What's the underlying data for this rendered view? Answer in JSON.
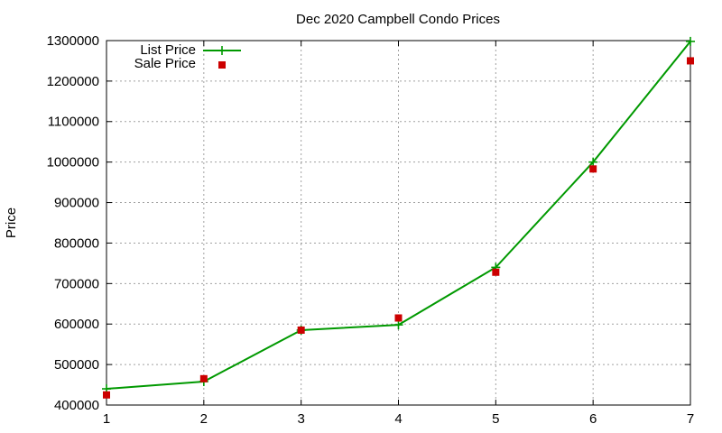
{
  "chart_data": {
    "type": "line",
    "title": "Dec 2020 Campbell Condo Prices",
    "xlabel": "",
    "ylabel": "Price",
    "x": [
      1,
      2,
      3,
      4,
      5,
      6,
      7
    ],
    "xlim": [
      1,
      7
    ],
    "ylim": [
      400000,
      1300000
    ],
    "xticks": [
      "1",
      "2",
      "3",
      "4",
      "5",
      "6",
      "7"
    ],
    "yticks": [
      "400000",
      "500000",
      "600000",
      "700000",
      "800000",
      "900000",
      "1000000",
      "1100000",
      "1200000",
      "1300000"
    ],
    "grid": true,
    "legend_position": "top-left",
    "series": [
      {
        "name": "List Price",
        "style": "linespoints",
        "marker": "plus",
        "color": "#009900",
        "values": [
          440000,
          458000,
          585000,
          598000,
          740000,
          1000000,
          1298000
        ]
      },
      {
        "name": "Sale Price",
        "style": "points",
        "marker": "square",
        "color": "#cc0000",
        "values": [
          425000,
          465000,
          585000,
          615000,
          728000,
          983000,
          1250000
        ]
      }
    ]
  }
}
